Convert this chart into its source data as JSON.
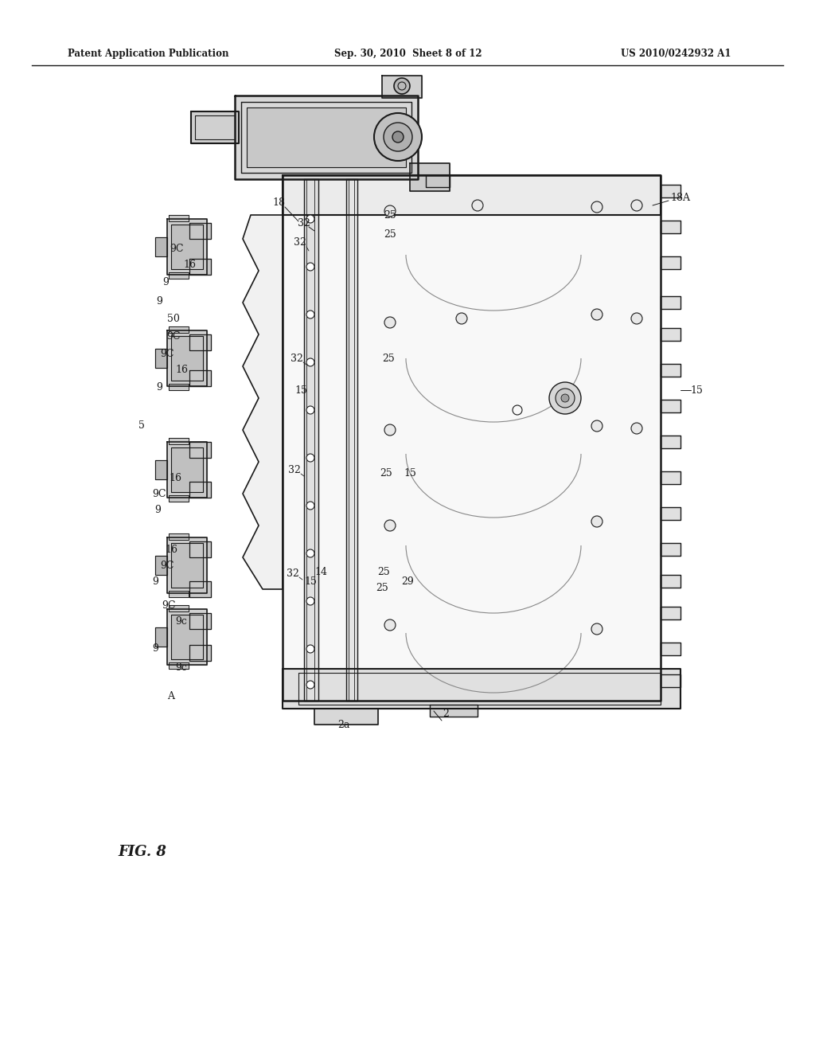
{
  "bg_color": "#ffffff",
  "header_left": "Patent Application Publication",
  "header_center": "Sep. 30, 2010  Sheet 8 of 12",
  "header_right": "US 2010/0242932 A1",
  "fig_label": "FIG. 8",
  "line_color": "#1a1a1a",
  "text_color": "#1a1a1a",
  "fig_width": 10.24,
  "fig_height": 13.2,
  "dpi": 100
}
